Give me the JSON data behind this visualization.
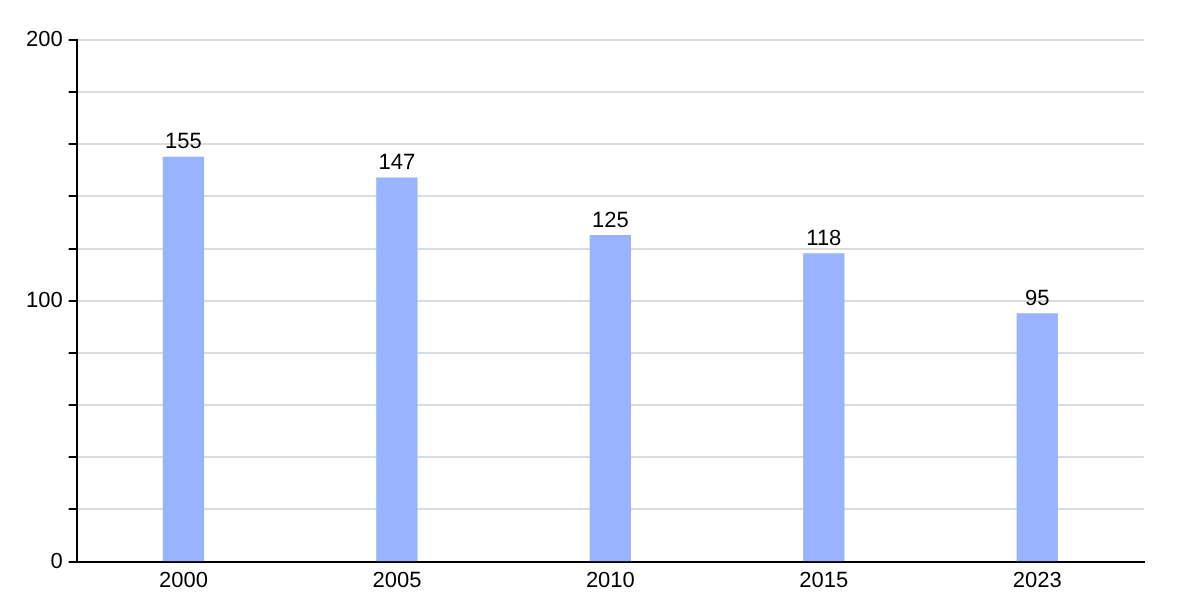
{
  "chart_data": {
    "type": "bar",
    "categories": [
      "2000",
      "2005",
      "2010",
      "2015",
      "2023"
    ],
    "values": [
      155,
      147,
      125,
      118,
      95
    ],
    "color": "#99b3ff",
    "ylim": [
      0,
      200
    ],
    "yticks": [
      0,
      {
        "value": 20,
        "label": null
      },
      {
        "value": 40,
        "label": null
      },
      {
        "value": 60,
        "label": null
      },
      {
        "value": 80,
        "label": null
      },
      100,
      {
        "value": 120,
        "label": null
      },
      {
        "value": 140,
        "label": null
      },
      {
        "value": 160,
        "label": null
      },
      {
        "value": 180,
        "label": null
      },
      200
    ],
    "grid": "y",
    "data_labels": true,
    "legend": false
  }
}
